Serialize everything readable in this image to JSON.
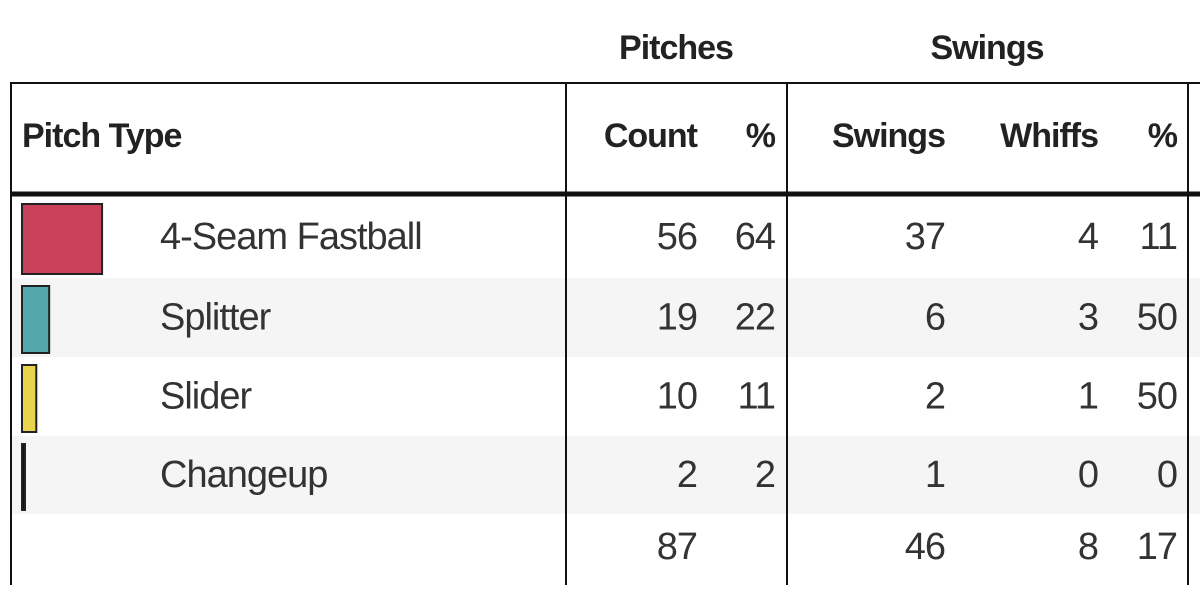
{
  "table": {
    "groups": [
      "Pitches",
      "Swings"
    ],
    "columns": [
      "Pitch Type",
      "Count",
      "%",
      "Swings",
      "Whiffs",
      "%"
    ],
    "rows": [
      {
        "pitch_type": "4-Seam Fastball",
        "color": "#c8405a",
        "count": 56,
        "pct": 64,
        "swings": 37,
        "whiffs": 4,
        "whiff_pct": 11
      },
      {
        "pitch_type": "Splitter",
        "color": "#52a8ad",
        "count": 19,
        "pct": 22,
        "swings": 6,
        "whiffs": 3,
        "whiff_pct": 50
      },
      {
        "pitch_type": "Slider",
        "color": "#e8d44d",
        "count": 10,
        "pct": 11,
        "swings": 2,
        "whiffs": 1,
        "whiff_pct": 50
      },
      {
        "pitch_type": "Changeup",
        "color": "#111111",
        "count": 2,
        "pct": 2,
        "swings": 1,
        "whiffs": 0,
        "whiff_pct": 0
      }
    ],
    "totals": {
      "count": 87,
      "swings": 46,
      "whiffs": 8,
      "whiff_pct": 17
    }
  }
}
